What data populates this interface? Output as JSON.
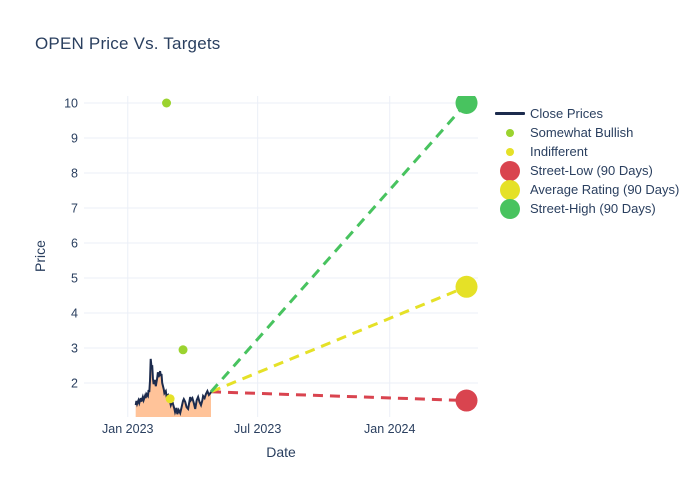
{
  "page": {
    "background": "#ffffff",
    "text_color": "#2a3f5f",
    "grid_color": "#ebeff7"
  },
  "title": {
    "text": "OPEN Price Vs. Targets"
  },
  "axes": {
    "x": {
      "label": "Date",
      "tick_labels": [
        "Jan 2023",
        "Jul 2023",
        "Jan 2024"
      ]
    },
    "y": {
      "label": "Price",
      "tick_labels": [
        "2",
        "3",
        "4",
        "5",
        "6",
        "7",
        "8",
        "9",
        "10"
      ]
    }
  },
  "legend": {
    "items": [
      {
        "label": "Close Prices",
        "swatch": "line",
        "color": "#1c2b4d"
      },
      {
        "label": "Somewhat Bullish",
        "swatch": "dot",
        "color": "#9bd32f"
      },
      {
        "label": "Indifferent",
        "swatch": "dot",
        "color": "#e5e127"
      },
      {
        "label": "Street-Low (90 Days)",
        "swatch": "circle",
        "color": "#d9444f"
      },
      {
        "label": "Average Rating (90 Days)",
        "swatch": "circle",
        "color": "#e5e127"
      },
      {
        "label": "Street-High (90 Days)",
        "swatch": "circle",
        "color": "#48c35f"
      }
    ]
  },
  "chart_data": {
    "type": "line",
    "title": "OPEN Price Vs. Targets",
    "xlabel": "Date",
    "ylabel": "Price",
    "x_unit_note": "x values are days since 2023-01-01 as read from the date axis",
    "xlim": [
      -61,
      488
    ],
    "ylim": [
      1.03,
      10.2
    ],
    "grid": true,
    "legend_position": "right",
    "xticks": [
      {
        "x": 0,
        "label": "Jan 2023"
      },
      {
        "x": 181,
        "label": "Jul 2023"
      },
      {
        "x": 365,
        "label": "Jan 2024"
      }
    ],
    "yticks": [
      2,
      3,
      4,
      5,
      6,
      7,
      8,
      9,
      10
    ],
    "series": [
      {
        "name": "Close Prices",
        "type": "line",
        "color": "#1c2b4d",
        "area_fill": "#ffc399",
        "points": [
          [
            11,
            1.37
          ],
          [
            12,
            1.49
          ],
          [
            13,
            1.4
          ],
          [
            15,
            1.51
          ],
          [
            16,
            1.43
          ],
          [
            18,
            1.57
          ],
          [
            19,
            1.47
          ],
          [
            21,
            1.6
          ],
          [
            22,
            1.51
          ],
          [
            24,
            1.63
          ],
          [
            25,
            1.57
          ],
          [
            26,
            1.69
          ],
          [
            28,
            1.63
          ],
          [
            29,
            1.8
          ],
          [
            30,
            1.74
          ],
          [
            31,
            2.06
          ],
          [
            32,
            2.69
          ],
          [
            33,
            2.46
          ],
          [
            34,
            2.51
          ],
          [
            35,
            2.14
          ],
          [
            36,
            1.97
          ],
          [
            38,
            2.09
          ],
          [
            39,
            1.91
          ],
          [
            40,
            2.03
          ],
          [
            41,
            2.14
          ],
          [
            42,
            2.31
          ],
          [
            43,
            2.17
          ],
          [
            45,
            2.34
          ],
          [
            46,
            2.2
          ],
          [
            47,
            2.26
          ],
          [
            48,
            2.0
          ],
          [
            50,
            1.83
          ],
          [
            51,
            1.71
          ],
          [
            53,
            1.77
          ],
          [
            54,
            1.63
          ],
          [
            56,
            1.66
          ],
          [
            57,
            1.54
          ],
          [
            59,
            1.46
          ],
          [
            60,
            1.37
          ],
          [
            62,
            1.49
          ],
          [
            63,
            1.4
          ],
          [
            65,
            1.26
          ],
          [
            66,
            1.17
          ],
          [
            68,
            1.29
          ],
          [
            69,
            1.11
          ],
          [
            71,
            1.23
          ],
          [
            73,
            1.14
          ],
          [
            75,
            1.31
          ],
          [
            77,
            1.49
          ],
          [
            78,
            1.54
          ],
          [
            80,
            1.46
          ],
          [
            82,
            1.31
          ],
          [
            84,
            1.26
          ],
          [
            85,
            1.37
          ],
          [
            87,
            1.6
          ],
          [
            88,
            1.51
          ],
          [
            90,
            1.57
          ],
          [
            92,
            1.43
          ],
          [
            94,
            1.26
          ],
          [
            96,
            1.51
          ],
          [
            98,
            1.6
          ],
          [
            100,
            1.46
          ],
          [
            102,
            1.37
          ],
          [
            104,
            1.51
          ],
          [
            105,
            1.63
          ],
          [
            107,
            1.57
          ],
          [
            109,
            1.69
          ],
          [
            111,
            1.77
          ],
          [
            113,
            1.66
          ],
          [
            115,
            1.71
          ],
          [
            116,
            1.75
          ]
        ]
      },
      {
        "name": "Somewhat Bullish",
        "type": "scatter",
        "color": "#9bd32f",
        "marker_radius": 4.5,
        "points": [
          [
            54,
            10
          ],
          [
            77,
            2.95
          ]
        ]
      },
      {
        "name": "Indifferent",
        "type": "scatter",
        "color": "#e5e127",
        "marker_radius": 4.5,
        "points": [
          [
            59,
            1.55
          ]
        ]
      },
      {
        "name": "Street-Low (90 Days)",
        "type": "target",
        "color": "#d9444f",
        "marker_radius": 11,
        "dashed_connector": true,
        "points": [
          [
            472,
            1.5
          ]
        ]
      },
      {
        "name": "Average Rating (90 Days)",
        "type": "target",
        "color": "#e5e127",
        "marker_radius": 11,
        "dashed_connector": true,
        "points": [
          [
            472,
            4.75
          ]
        ]
      },
      {
        "name": "Street-High (90 Days)",
        "type": "target",
        "color": "#48c35f",
        "marker_radius": 11,
        "dashed_connector": true,
        "points": [
          [
            472,
            10.0
          ]
        ]
      }
    ]
  }
}
